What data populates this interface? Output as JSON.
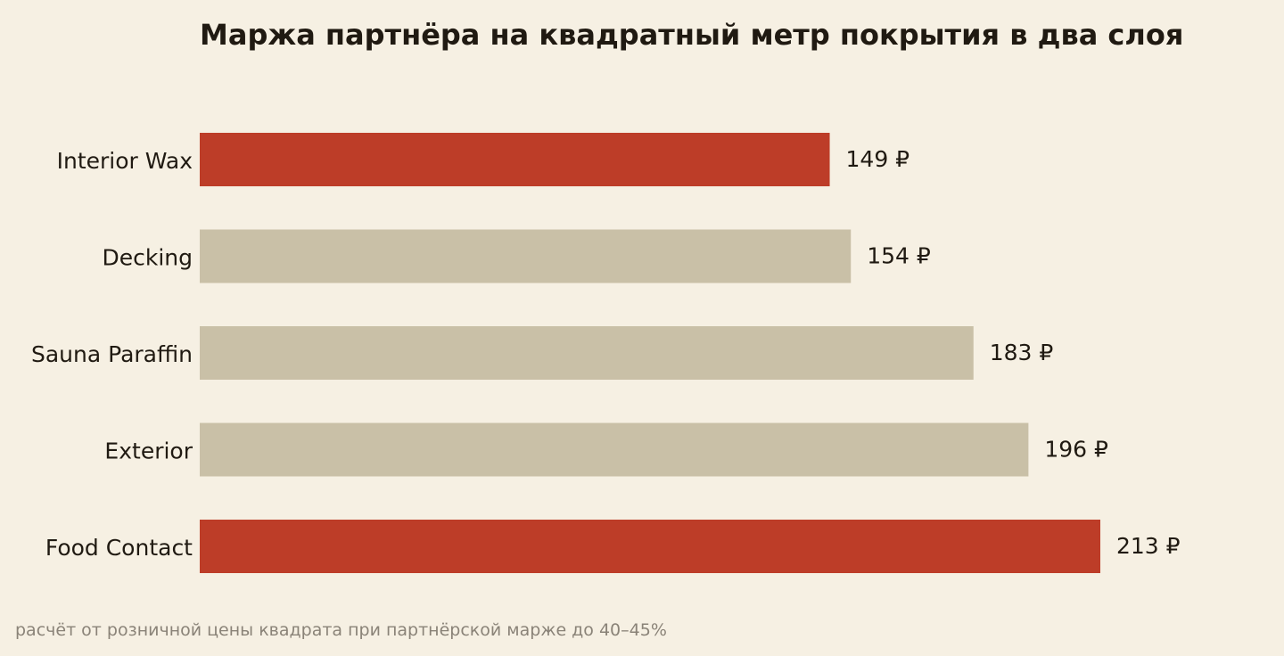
{
  "chart_data": {
    "type": "bar",
    "orientation": "horizontal",
    "title": "Маржа партнёра на квадратный метр покрытия в два слоя",
    "categories": [
      "Interior Wax",
      "Decking",
      "Sauna Paraffin",
      "Exterior",
      "Food Contact"
    ],
    "values": [
      149,
      154,
      183,
      196,
      213
    ],
    "value_labels": [
      "149 ₽",
      "154 ₽",
      "183 ₽",
      "196 ₽",
      "213 ₽"
    ],
    "highlighted": [
      true,
      false,
      false,
      false,
      true
    ],
    "xlim": [
      0,
      213
    ],
    "grid": false,
    "colors": {
      "highlight": "#bd3d28",
      "default": "#c9c0a7",
      "background": "#f6f0e3",
      "text": "#201a12"
    },
    "footnote": "расчёт от розничной цены квадрата при партнёрской марже до 40–45%"
  }
}
